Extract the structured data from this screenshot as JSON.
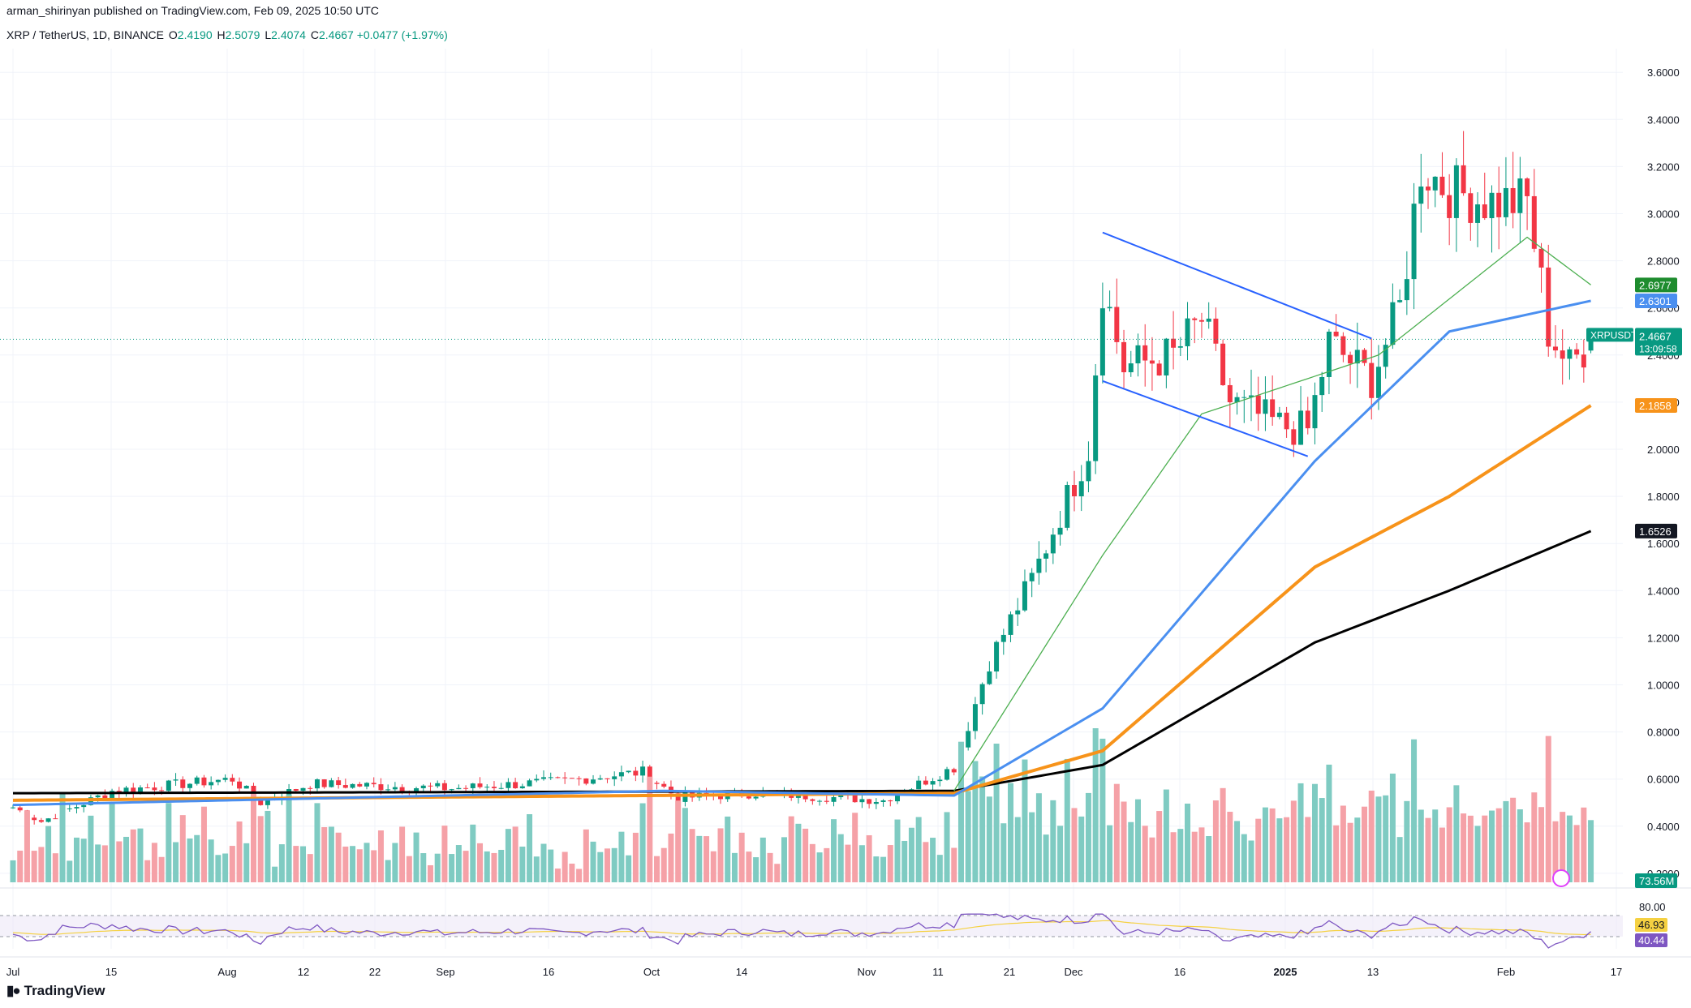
{
  "header": {
    "published": "arman_shirinyan published on TradingView.com, Feb 09, 2025 10:50 UTC",
    "symbol": "XRP / TetherUS, 1D, BINANCE",
    "o_label": "O",
    "o_value": "2.4190",
    "h_label": "H",
    "h_value": "2.5079",
    "l_label": "L",
    "l_value": "2.4074",
    "c_label": "C",
    "c_value": "2.4667",
    "change": "+0.0477 (+1.97%)"
  },
  "footer": {
    "logo_text": "TradingView"
  },
  "colors": {
    "up": "#089981",
    "down": "#f23645",
    "vol_up": "#7fcbc2",
    "vol_down": "#f5a1a7",
    "sma20": "#4caf50",
    "ema50": "#4a8ff0",
    "ema100": "#f7931a",
    "ema200": "#000000",
    "trendline": "#2962ff",
    "rsi": "#7e57c2",
    "rsi_ma": "#f5d142"
  },
  "chart_data": {
    "type": "candlestick",
    "symbol": "XRPUSDT",
    "timeframe": "1D",
    "y_axis_ticks": [
      "0.2000",
      "0.4000",
      "0.6000",
      "0.8000",
      "1.0000",
      "1.2000",
      "1.4000",
      "1.6000",
      "1.8000",
      "2.0000",
      "2.2000",
      "2.4000",
      "2.6000",
      "2.8000",
      "3.0000",
      "3.2000",
      "3.4000",
      "3.6000"
    ],
    "ylim": [
      0.0,
      3.7
    ],
    "x_axis_labels": [
      "Jul",
      "15",
      "Aug",
      "12",
      "22",
      "Sep",
      "16",
      "Oct",
      "14",
      "Nov",
      "11",
      "21",
      "Dec",
      "16",
      "2025",
      "13",
      "Feb",
      "17"
    ],
    "last_price_label": {
      "symbol": "XRPUSDT",
      "price": "2.4667",
      "countdown": "13:09:58"
    },
    "ma_labels": [
      {
        "value": "2.6977",
        "role": "sma20"
      },
      {
        "value": "2.6301",
        "role": "ema50"
      },
      {
        "value": "2.1858",
        "role": "ema100"
      },
      {
        "value": "1.6526",
        "role": "ema200"
      }
    ],
    "volume_label": "73.56M",
    "rsi": {
      "ticks": [
        "80.00"
      ],
      "values_shown": [
        "46.93",
        "40.44"
      ]
    },
    "price_path_anchors": [
      {
        "date": "Jul 1",
        "close": 0.48
      },
      {
        "date": "Jul 5",
        "close": 0.42
      },
      {
        "date": "Jul 15",
        "close": 0.55
      },
      {
        "date": "Aug 1",
        "close": 0.6
      },
      {
        "date": "Aug 5",
        "close": 0.5
      },
      {
        "date": "Aug 12",
        "close": 0.58
      },
      {
        "date": "Sep 1",
        "close": 0.56
      },
      {
        "date": "Sep 16",
        "close": 0.59
      },
      {
        "date": "Sep 28",
        "close": 0.63
      },
      {
        "date": "Oct 3",
        "close": 0.52
      },
      {
        "date": "Oct 14",
        "close": 0.54
      },
      {
        "date": "Nov 1",
        "close": 0.51
      },
      {
        "date": "Nov 11",
        "close": 0.65
      },
      {
        "date": "Nov 16",
        "close": 1.1
      },
      {
        "date": "Nov 22",
        "close": 1.45
      },
      {
        "date": "Nov 30",
        "close": 2.0
      },
      {
        "date": "Dec 2",
        "close": 2.7
      },
      {
        "date": "Dec 5",
        "close": 2.35
      },
      {
        "date": "Dec 12",
        "close": 2.4
      },
      {
        "date": "Dec 16",
        "close": 2.55
      },
      {
        "date": "Dec 20",
        "close": 2.2
      },
      {
        "date": "Dec 27",
        "close": 2.1
      },
      {
        "date": "Dec 31",
        "close": 2.08
      },
      {
        "date": "Jan 3",
        "close": 2.45
      },
      {
        "date": "Jan 9",
        "close": 2.3
      },
      {
        "date": "Jan 13",
        "close": 2.6
      },
      {
        "date": "Jan 16",
        "close": 3.2
      },
      {
        "date": "Jan 20",
        "close": 3.1
      },
      {
        "date": "Jan 26",
        "close": 3.05
      },
      {
        "date": "Jan 31",
        "close": 3.05
      },
      {
        "date": "Feb 2",
        "close": 2.7
      },
      {
        "date": "Feb 3",
        "close": 2.5
      },
      {
        "date": "Feb 6",
        "close": 2.35
      },
      {
        "date": "Feb 9",
        "close": 2.4667
      }
    ],
    "moving_averages": {
      "sma20": [
        {
          "date": "Nov 11",
          "v": 0.55
        },
        {
          "date": "Dec 2",
          "v": 1.55
        },
        {
          "date": "Dec 16",
          "v": 2.15
        },
        {
          "date": "Jan 10",
          "v": 2.4
        },
        {
          "date": "Jan 31",
          "v": 2.9
        },
        {
          "date": "Feb 9",
          "v": 2.6977
        }
      ],
      "ema50": [
        {
          "date": "Jul 1",
          "v": 0.49
        },
        {
          "date": "Oct 1",
          "v": 0.55
        },
        {
          "date": "Nov 11",
          "v": 0.53
        },
        {
          "date": "Dec 2",
          "v": 0.9
        },
        {
          "date": "Jan 1",
          "v": 1.95
        },
        {
          "date": "Jan 20",
          "v": 2.5
        },
        {
          "date": "Feb 9",
          "v": 2.6301
        }
      ],
      "ema100": [
        {
          "date": "Jul 1",
          "v": 0.51
        },
        {
          "date": "Nov 11",
          "v": 0.54
        },
        {
          "date": "Dec 2",
          "v": 0.72
        },
        {
          "date": "Jan 1",
          "v": 1.5
        },
        {
          "date": "Jan 20",
          "v": 1.8
        },
        {
          "date": "Feb 9",
          "v": 2.1858
        }
      ],
      "ema200": [
        {
          "date": "Jul 1",
          "v": 0.54
        },
        {
          "date": "Nov 11",
          "v": 0.55
        },
        {
          "date": "Dec 2",
          "v": 0.66
        },
        {
          "date": "Jan 1",
          "v": 1.18
        },
        {
          "date": "Jan 20",
          "v": 1.4
        },
        {
          "date": "Feb 9",
          "v": 1.6526
        }
      ]
    },
    "trendlines": [
      {
        "from": {
          "date": "Dec 2",
          "price": 2.92
        },
        "to": {
          "date": "Jan 9",
          "price": 2.47
        }
      },
      {
        "from": {
          "date": "Dec 2",
          "price": 2.29
        },
        "to": {
          "date": "Dec 31",
          "price": 1.97
        }
      }
    ],
    "grid": true,
    "legend": "none"
  }
}
